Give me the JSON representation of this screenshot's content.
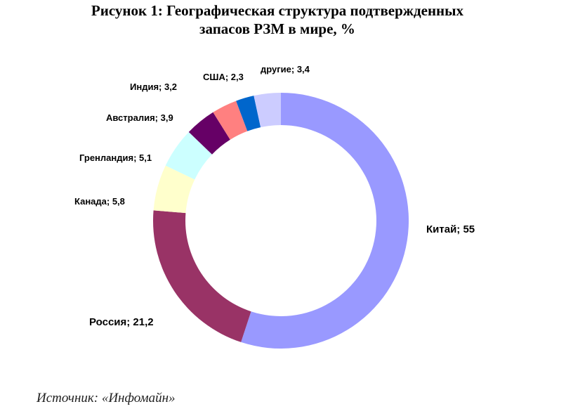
{
  "chart_data": {
    "type": "pie",
    "donut": true,
    "title_lines": [
      "Рисунок 1: Географическая структура подтвержденных",
      "запасов РЗМ в мире, %"
    ],
    "unit": "%",
    "slices": [
      {
        "name": "Китай",
        "value": 55,
        "label": "Китай; 55",
        "color": "#9999ff"
      },
      {
        "name": "Россия",
        "value": 21.2,
        "label": "Россия; 21,2",
        "color": "#993366"
      },
      {
        "name": "Канада",
        "value": 5.8,
        "label": "Канада; 5,8",
        "color": "#ffffcc"
      },
      {
        "name": "Гренландия",
        "value": 5.1,
        "label": "Гренландия; 5,1",
        "color": "#ccffff"
      },
      {
        "name": "Австралия",
        "value": 3.9,
        "label": "Австралия; 3,9",
        "color": "#660066"
      },
      {
        "name": "Индия",
        "value": 3.2,
        "label": "Индия; 3,2",
        "color": "#ff8080"
      },
      {
        "name": "США",
        "value": 2.3,
        "label": "США; 2,3",
        "color": "#0066cc"
      },
      {
        "name": "другие",
        "value": 3.4,
        "label": "другие; 3,4",
        "color": "#ccccff"
      }
    ],
    "legend": "none",
    "labels": "outside"
  },
  "source": "Источник: «Инфомайн»"
}
